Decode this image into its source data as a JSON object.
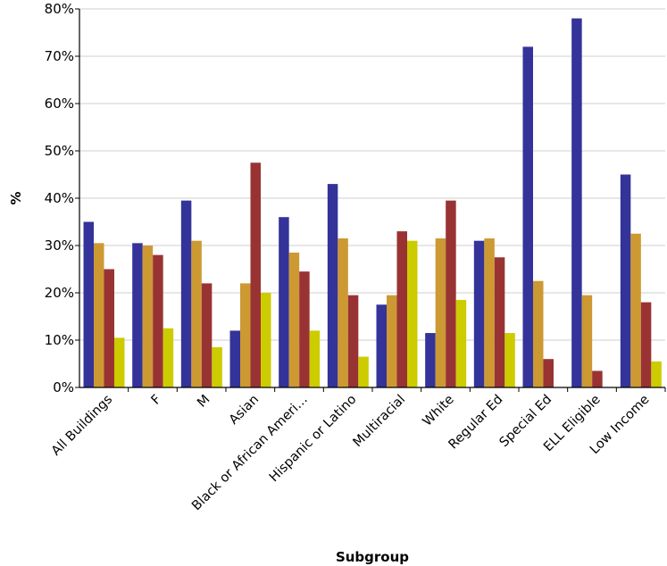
{
  "chart_data": {
    "type": "bar",
    "xlabel": "Subgroup",
    "ylabel": "%",
    "ylim": [
      0,
      80
    ],
    "ytick_step": 10,
    "ytick_suffix": "%",
    "grid": true,
    "categories": [
      "All Buildings",
      "F",
      "M",
      "Asian",
      "Black or African Ameri…",
      "Hispanic or Latino",
      "Multiracial",
      "White",
      "Regular Ed",
      "Special Ed",
      "ELL Eligible",
      "Low Income"
    ],
    "series": [
      {
        "color": "#333399",
        "values": [
          35.0,
          30.5,
          39.5,
          12.0,
          36.0,
          43.0,
          17.5,
          11.5,
          31.0,
          72.0,
          78.0,
          45.0
        ]
      },
      {
        "color": "#cc9933",
        "values": [
          30.5,
          30.0,
          31.0,
          22.0,
          28.5,
          31.5,
          19.5,
          31.5,
          31.5,
          22.5,
          19.5,
          32.5
        ]
      },
      {
        "color": "#993333",
        "values": [
          25.0,
          28.0,
          22.0,
          47.5,
          24.5,
          19.5,
          33.0,
          39.5,
          27.5,
          6.0,
          3.5,
          18.0
        ]
      },
      {
        "color": "#cccc00",
        "values": [
          10.5,
          12.5,
          8.5,
          20.0,
          12.0,
          6.5,
          31.0,
          18.5,
          11.5,
          0,
          0,
          5.5
        ]
      }
    ]
  }
}
